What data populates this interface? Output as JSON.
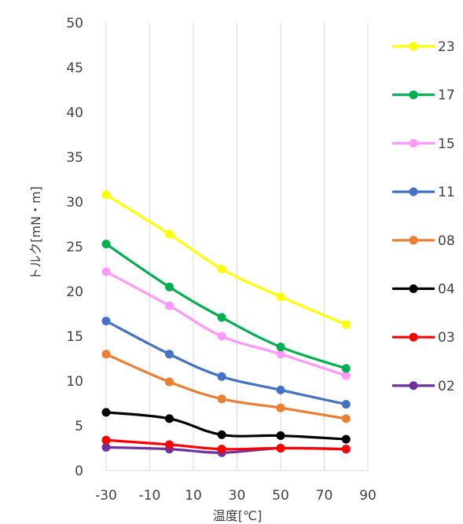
{
  "chart_data": {
    "type": "line",
    "xlabel": "温度[℃]",
    "ylabel": "トルク[mN・m]",
    "xlim": [
      -30,
      90
    ],
    "ylim": [
      0,
      50
    ],
    "xticks": [
      "-30",
      "-10",
      "10",
      "30",
      "50",
      "70",
      "90"
    ],
    "yticks": [
      "0",
      "5",
      "10",
      "15",
      "20",
      "25",
      "30",
      "35",
      "40",
      "45",
      "50"
    ],
    "grid": "vertical",
    "legend_position": "right",
    "x": [
      -30,
      -1,
      23,
      50,
      80
    ],
    "series": [
      {
        "name": "23",
        "color": "#FFFF00",
        "values": [
          30.8,
          26.4,
          22.5,
          19.4,
          16.3
        ]
      },
      {
        "name": "17",
        "color": "#00B050",
        "values": [
          25.3,
          20.5,
          17.1,
          13.8,
          11.4
        ]
      },
      {
        "name": "15",
        "color": "#FF99FF",
        "values": [
          22.2,
          18.4,
          15.0,
          13.0,
          10.6
        ]
      },
      {
        "name": "11",
        "color": "#4472C4",
        "values": [
          16.7,
          13.0,
          10.5,
          9.0,
          7.4
        ]
      },
      {
        "name": "08",
        "color": "#ED7D31",
        "values": [
          13.0,
          9.9,
          8.0,
          7.0,
          5.8
        ]
      },
      {
        "name": "04",
        "color": "#000000",
        "values": [
          6.5,
          5.8,
          4.0,
          3.9,
          3.5
        ]
      },
      {
        "name": "03",
        "color": "#FF0000",
        "values": [
          3.4,
          2.9,
          2.4,
          2.5,
          2.4
        ]
      },
      {
        "name": "02",
        "color": "#7030A0",
        "values": [
          2.6,
          2.4,
          2.0,
          2.5,
          2.4
        ]
      }
    ]
  }
}
